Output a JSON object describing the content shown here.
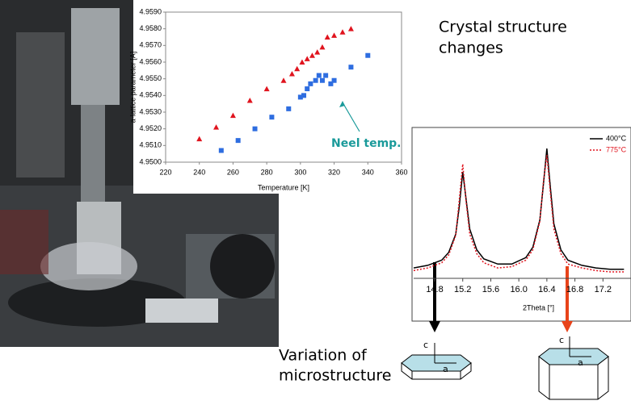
{
  "chart_data": [
    {
      "type": "scatter",
      "x_label": "Temperature [K]",
      "y_label": "a-lattice parameter [A]",
      "annotation": "Neel temp.",
      "xlim": [
        220,
        360
      ],
      "xticks": [
        220,
        240,
        260,
        280,
        300,
        320,
        340,
        360
      ],
      "ylim": [
        4.95,
        4.959
      ],
      "yticks": [
        {
          "value": 4.95,
          "label": "4.9500"
        },
        {
          "value": 4.951,
          "label": "4.9510"
        },
        {
          "value": 4.952,
          "label": "4.9520"
        },
        {
          "value": 4.953,
          "label": "4.9530"
        },
        {
          "value": 4.954,
          "label": "4.9540"
        },
        {
          "value": 4.955,
          "label": "4.9550"
        },
        {
          "value": 4.956,
          "label": "4.9560"
        },
        {
          "value": 4.957,
          "label": "4.9570"
        },
        {
          "value": 4.958,
          "label": "4.9580"
        },
        {
          "value": 4.959,
          "label": "4.9590"
        }
      ],
      "series": [
        {
          "marker": "triangle",
          "color": "#e0141e",
          "x": [
            240,
            250,
            260,
            270,
            280,
            290,
            295,
            298,
            301,
            304,
            307,
            310,
            313,
            316,
            320,
            325,
            330
          ],
          "values": [
            4.9514,
            4.9521,
            4.9528,
            4.9537,
            4.9544,
            4.9549,
            4.9553,
            4.9556,
            4.956,
            4.9562,
            4.9564,
            4.9566,
            4.9569,
            4.9575,
            4.9576,
            4.9578,
            4.958
          ]
        },
        {
          "marker": "square",
          "color": "#2e6de0",
          "x": [
            253,
            263,
            273,
            283,
            293,
            300,
            302,
            304,
            306,
            309,
            311,
            313,
            315,
            318,
            320,
            330,
            340
          ],
          "values": [
            4.9507,
            4.9513,
            4.952,
            4.9527,
            4.9532,
            4.9539,
            4.954,
            4.9544,
            4.9547,
            4.9549,
            4.9552,
            4.9549,
            4.9552,
            4.9547,
            4.9549,
            4.9557,
            4.9564
          ]
        }
      ]
    },
    {
      "type": "line",
      "x_label": "2Theta [°]",
      "legend": "top-right",
      "xlim": [
        14.5,
        17.6
      ],
      "ylim": [
        0,
        115
      ],
      "xticks": [
        14.8,
        15.2,
        15.6,
        {
          "value": 16,
          "label": "16.0"
        },
        16.4,
        16.8,
        17.2
      ],
      "x": [
        14.5,
        14.7,
        14.9,
        15.0,
        15.1,
        15.15,
        15.2,
        15.25,
        15.3,
        15.4,
        15.5,
        15.7,
        15.9,
        16.1,
        16.2,
        16.3,
        16.35,
        16.4,
        16.45,
        16.5,
        16.6,
        16.7,
        16.9,
        17.1,
        17.3,
        17.5
      ],
      "series": [
        {
          "name": "400°C",
          "color": "#000000",
          "dash": "none",
          "values": [
            8,
            10,
            14,
            20,
            34,
            55,
            82,
            60,
            38,
            22,
            15,
            11,
            11,
            16,
            24,
            45,
            72,
            100,
            70,
            42,
            22,
            14,
            10,
            8,
            7,
            7
          ]
        },
        {
          "name": "775°C",
          "color": "#e0141e",
          "dash": "2,2",
          "values": [
            6,
            8,
            12,
            18,
            33,
            60,
            88,
            58,
            34,
            19,
            12,
            8,
            9,
            14,
            22,
            44,
            74,
            95,
            66,
            38,
            19,
            11,
            8,
            6,
            5,
            5
          ]
        }
      ]
    }
  ],
  "texts": {
    "heading": [
      "Crystal structure",
      "changes"
    ],
    "variation": [
      "Variation of",
      "microstructure"
    ]
  },
  "diagrams": [
    {
      "c": "c",
      "a": "a"
    },
    {
      "c": "c",
      "a": "a"
    }
  ]
}
